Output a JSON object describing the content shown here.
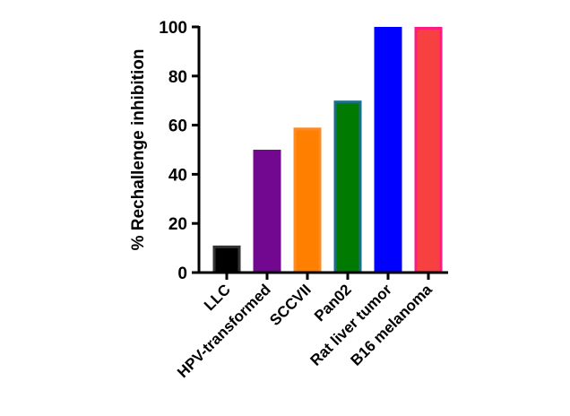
{
  "chart_data": {
    "type": "bar",
    "title": "",
    "xlabel": "",
    "ylabel": "% Rechallenge inhibition",
    "ylim": [
      0,
      100
    ],
    "yticks": [
      0,
      20,
      40,
      60,
      80,
      100
    ],
    "grid": false,
    "categories": [
      "LLC",
      "HPV-transformed",
      "SCCVII",
      "Pan02",
      "Rat liver tumor",
      "B16 melanoma"
    ],
    "values": [
      11,
      50,
      59,
      70,
      100,
      100
    ],
    "fill_colors": [
      "#000000",
      "#730890",
      "#ff8000",
      "#007a00",
      "#0000ff",
      "#f74040"
    ],
    "edge_colors": [
      "#333333",
      "#730890",
      "#ff8a20",
      "#1a6f8a",
      "#0000ff",
      "#ff1a80"
    ]
  }
}
